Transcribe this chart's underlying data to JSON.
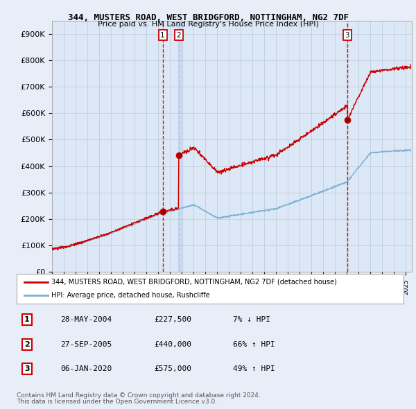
{
  "title": "344, MUSTERS ROAD, WEST BRIDGFORD, NOTTINGHAM, NG2 7DF",
  "subtitle": "Price paid vs. HM Land Registry's House Price Index (HPI)",
  "ylabel_ticks": [
    "£0",
    "£100K",
    "£200K",
    "£300K",
    "£400K",
    "£500K",
    "£600K",
    "£700K",
    "£800K",
    "£900K"
  ],
  "ytick_values": [
    0,
    100000,
    200000,
    300000,
    400000,
    500000,
    600000,
    700000,
    800000,
    900000
  ],
  "ylim": [
    0,
    950000
  ],
  "xlim_start": 1995.0,
  "xlim_end": 2025.5,
  "legend_line1": "344, MUSTERS ROAD, WEST BRIDGFORD, NOTTINGHAM, NG2 7DF (detached house)",
  "legend_line2": "HPI: Average price, detached house, Rushcliffe",
  "red_line_color": "#cc0000",
  "blue_line_color": "#7aafd4",
  "vline1_color": "#cc0000",
  "vline2_color": "#aabbdd",
  "sale1_date": "28-MAY-2004",
  "sale1_price": "£227,500",
  "sale1_hpi": "7% ↓ HPI",
  "sale1_x": 2004.38,
  "sale1_y": 227500,
  "sale2_date": "27-SEP-2005",
  "sale2_price": "£440,000",
  "sale2_hpi": "66% ↑ HPI",
  "sale2_x": 2005.73,
  "sale2_y": 440000,
  "sale3_date": "06-JAN-2020",
  "sale3_price": "£575,000",
  "sale3_hpi": "49% ↑ HPI",
  "sale3_x": 2020.02,
  "sale3_y": 575000,
  "footnote1": "Contains HM Land Registry data © Crown copyright and database right 2024.",
  "footnote2": "This data is licensed under the Open Government Licence v3.0.",
  "background_color": "#e8eef8",
  "plot_bg_color": "#dce8f5"
}
